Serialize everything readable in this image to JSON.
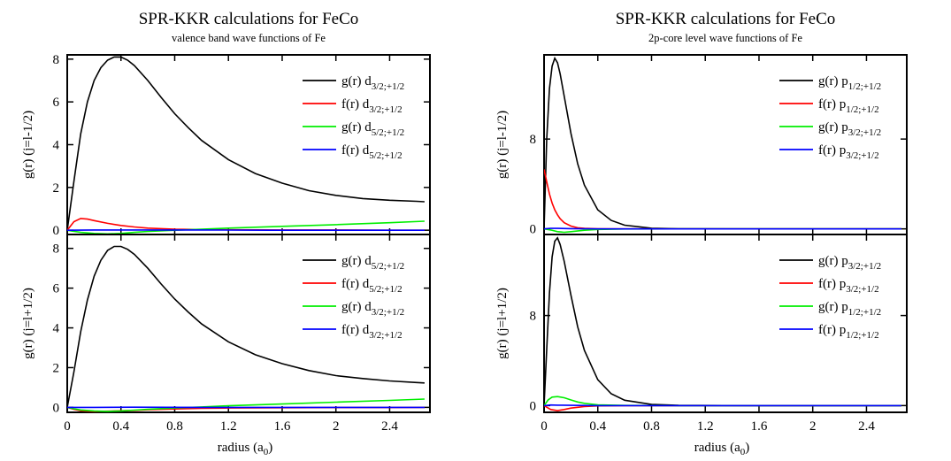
{
  "x_axis_label": "radius (a",
  "x_axis_label_sub": "0",
  "chart_data": [
    {
      "type": "line",
      "title": "SPR-KKR calculations for FeCo",
      "subtitle": "valence band wave functions of Fe",
      "xlim": [
        0,
        2.7
      ],
      "xticks": [
        0,
        0.4,
        0.8,
        1.2,
        1.6,
        2,
        2.4
      ],
      "xtick_labels": [
        "0",
        "0.4",
        "0.8",
        "1.2",
        "1.6",
        "2",
        "2.4"
      ],
      "panels": [
        {
          "ylabel": "g(r)    (j=l-1/2)",
          "ylim": [
            -0.2,
            8.2
          ],
          "yticks": [
            0,
            2,
            4,
            6,
            8
          ],
          "ytick_labels": [
            "0",
            "2",
            "4",
            "6",
            "8"
          ],
          "legend": "top-right",
          "series": [
            {
              "name": "g(r) d",
              "sub": "3/2;+1/2",
              "color": "#000000",
              "x": [
                0,
                0.05,
                0.1,
                0.15,
                0.2,
                0.25,
                0.3,
                0.35,
                0.4,
                0.45,
                0.5,
                0.6,
                0.7,
                0.8,
                0.9,
                1.0,
                1.2,
                1.4,
                1.6,
                1.8,
                2.0,
                2.2,
                2.4,
                2.6,
                2.66
              ],
              "y": [
                0,
                2.3,
                4.5,
                6.0,
                7.0,
                7.6,
                7.95,
                8.1,
                8.1,
                7.95,
                7.7,
                7.0,
                6.2,
                5.45,
                4.8,
                4.2,
                3.3,
                2.65,
                2.2,
                1.85,
                1.63,
                1.48,
                1.4,
                1.35,
                1.33
              ]
            },
            {
              "name": "f(r) d",
              "sub": "3/2;+1/2",
              "color": "#ff0000",
              "x": [
                0,
                0.05,
                0.1,
                0.15,
                0.2,
                0.3,
                0.4,
                0.5,
                0.6,
                0.8,
                1.0,
                1.2,
                1.6,
                2.0,
                2.4,
                2.66
              ],
              "y": [
                0,
                0.4,
                0.55,
                0.52,
                0.45,
                0.32,
                0.22,
                0.15,
                0.1,
                0.05,
                0.03,
                0.02,
                0.01,
                0.01,
                0.0,
                0.0
              ]
            },
            {
              "name": "g(r) d",
              "sub": "5/2;+1/2",
              "color": "#00ee00",
              "x": [
                0,
                0.05,
                0.1,
                0.2,
                0.3,
                0.4,
                0.5,
                0.6,
                0.8,
                1.0,
                1.2,
                1.6,
                2.0,
                2.4,
                2.66
              ],
              "y": [
                0,
                -0.05,
                -0.1,
                -0.15,
                -0.17,
                -0.15,
                -0.1,
                -0.06,
                0.0,
                0.05,
                0.1,
                0.18,
                0.26,
                0.35,
                0.42
              ]
            },
            {
              "name": "f(r) d",
              "sub": "5/2;+1/2",
              "color": "#0000ff",
              "x": [
                0,
                0.2,
                0.5,
                1.0,
                1.5,
                2.0,
                2.66
              ],
              "y": [
                0,
                0.01,
                0.01,
                0.01,
                0.0,
                0.0,
                0.0
              ]
            }
          ]
        },
        {
          "ylabel": "g(r)    (j=l+1/2)",
          "ylim": [
            -0.25,
            8.7
          ],
          "yticks": [
            0,
            2,
            4,
            6,
            8
          ],
          "ytick_labels": [
            "0",
            "2",
            "4",
            "6",
            "8"
          ],
          "legend": "top-right",
          "series": [
            {
              "name": "g(r) d",
              "sub": "5/2;+1/2",
              "color": "#000000",
              "x": [
                0,
                0.05,
                0.1,
                0.15,
                0.2,
                0.25,
                0.3,
                0.35,
                0.4,
                0.45,
                0.5,
                0.6,
                0.7,
                0.8,
                0.9,
                1.0,
                1.2,
                1.4,
                1.6,
                1.8,
                2.0,
                2.2,
                2.4,
                2.6,
                2.66
              ],
              "y": [
                0,
                1.8,
                3.8,
                5.4,
                6.6,
                7.4,
                7.9,
                8.1,
                8.1,
                7.95,
                7.7,
                7.0,
                6.2,
                5.45,
                4.8,
                4.2,
                3.3,
                2.65,
                2.2,
                1.85,
                1.6,
                1.45,
                1.33,
                1.25,
                1.23
              ]
            },
            {
              "name": "f(r) d",
              "sub": "5/2;+1/2",
              "color": "#ff0000",
              "x": [
                0,
                0.05,
                0.1,
                0.2,
                0.3,
                0.4,
                0.5,
                0.6,
                0.8,
                1.0,
                1.2,
                1.6,
                2.0,
                2.4,
                2.66
              ],
              "y": [
                0,
                -0.1,
                -0.17,
                -0.2,
                -0.19,
                -0.17,
                -0.15,
                -0.12,
                -0.08,
                -0.05,
                -0.03,
                -0.02,
                -0.01,
                -0.01,
                0.0
              ]
            },
            {
              "name": "g(r) d",
              "sub": "3/2;+1/2",
              "color": "#00ee00",
              "x": [
                0,
                0.05,
                0.1,
                0.2,
                0.3,
                0.4,
                0.5,
                0.6,
                0.8,
                1.0,
                1.2,
                1.6,
                2.0,
                2.4,
                2.66
              ],
              "y": [
                0,
                -0.07,
                -0.13,
                -0.18,
                -0.2,
                -0.18,
                -0.14,
                -0.1,
                -0.03,
                0.02,
                0.08,
                0.17,
                0.26,
                0.35,
                0.42
              ]
            },
            {
              "name": "f(r) d",
              "sub": "3/2;+1/2",
              "color": "#0000ff",
              "x": [
                0,
                0.2,
                0.5,
                1.0,
                1.5,
                2.0,
                2.66
              ],
              "y": [
                0,
                0.0,
                0.01,
                0.0,
                0.0,
                0.0,
                0.0
              ]
            }
          ]
        }
      ]
    },
    {
      "type": "line",
      "title": "SPR-KKR calculations for FeCo",
      "subtitle": "2p-core level wave functions of Fe",
      "xlim": [
        0,
        2.7
      ],
      "xticks": [
        0,
        0.4,
        0.8,
        1.2,
        1.6,
        2,
        2.4
      ],
      "xtick_labels": [
        "0",
        "0.4",
        "0.8",
        "1.2",
        "1.6",
        "2",
        "2.4"
      ],
      "panels": [
        {
          "ylabel": "g(r)    (j=l-1/2)",
          "ylim": [
            -0.5,
            15.5
          ],
          "yticks": [
            0,
            8
          ],
          "ytick_labels": [
            "0",
            "8"
          ],
          "legend": "top-right",
          "series": [
            {
              "name": "g(r) p",
              "sub": "1/2;+1/2",
              "color": "#000000",
              "x": [
                0,
                0.02,
                0.04,
                0.06,
                0.08,
                0.1,
                0.12,
                0.15,
                0.2,
                0.25,
                0.3,
                0.4,
                0.5,
                0.6,
                0.8,
                1.0,
                1.5,
                2.0,
                2.66
              ],
              "y": [
                0,
                8.0,
                12.5,
                14.5,
                15.2,
                14.8,
                13.8,
                11.8,
                8.5,
                5.8,
                3.9,
                1.7,
                0.75,
                0.33,
                0.06,
                0.01,
                0.0,
                0.0,
                0.0
              ]
            },
            {
              "name": "f(r) p",
              "sub": "1/2;+1/2",
              "color": "#ff0000",
              "x": [
                0,
                0.02,
                0.04,
                0.06,
                0.08,
                0.1,
                0.12,
                0.15,
                0.2,
                0.25,
                0.3,
                0.4,
                0.6,
                1.0,
                2.66
              ],
              "y": [
                5.3,
                4.2,
                3.1,
                2.3,
                1.7,
                1.25,
                0.9,
                0.55,
                0.25,
                0.1,
                0.04,
                0.01,
                0.0,
                0.0,
                0.0
              ]
            },
            {
              "name": "g(r) p",
              "sub": "3/2;+1/2",
              "color": "#00ee00",
              "x": [
                0,
                0.05,
                0.1,
                0.15,
                0.2,
                0.3,
                0.4,
                0.6,
                1.0,
                2.66
              ],
              "y": [
                0,
                -0.1,
                -0.25,
                -0.3,
                -0.25,
                -0.12,
                -0.05,
                -0.01,
                0.0,
                0.0
              ]
            },
            {
              "name": "f(r) p",
              "sub": "3/2;+1/2",
              "color": "#0000ff",
              "x": [
                0,
                0.05,
                0.1,
                0.2,
                0.4,
                1.0,
                2.66
              ],
              "y": [
                0,
                0.05,
                0.04,
                0.02,
                0.0,
                0.0,
                0.0
              ]
            }
          ]
        },
        {
          "ylabel": "g(r)    (j=l+1/2)",
          "ylim": [
            -0.6,
            15.2
          ],
          "yticks": [
            0,
            8
          ],
          "ytick_labels": [
            "0",
            "8"
          ],
          "legend": "top-right",
          "series": [
            {
              "name": "g(r) p",
              "sub": "3/2;+1/2",
              "color": "#000000",
              "x": [
                0,
                0.02,
                0.04,
                0.06,
                0.08,
                0.1,
                0.12,
                0.15,
                0.2,
                0.25,
                0.3,
                0.4,
                0.5,
                0.6,
                0.8,
                1.0,
                1.5,
                2.0,
                2.66
              ],
              "y": [
                0,
                5.0,
                10.0,
                13.2,
                14.6,
                14.9,
                14.3,
                12.8,
                9.8,
                7.0,
                4.9,
                2.3,
                1.05,
                0.48,
                0.1,
                0.02,
                0.0,
                0.0,
                0.0
              ]
            },
            {
              "name": "f(r) p",
              "sub": "3/2;+1/2",
              "color": "#ff0000",
              "x": [
                0,
                0.05,
                0.1,
                0.15,
                0.2,
                0.3,
                0.4,
                0.6,
                1.0,
                2.66
              ],
              "y": [
                0,
                -0.35,
                -0.45,
                -0.35,
                -0.22,
                -0.08,
                -0.03,
                0.0,
                0.0,
                0.0
              ]
            },
            {
              "name": "g(r) p",
              "sub": "1/2;+1/2",
              "color": "#00ee00",
              "x": [
                0,
                0.03,
                0.06,
                0.1,
                0.15,
                0.2,
                0.25,
                0.3,
                0.4,
                0.6,
                1.0,
                2.66
              ],
              "y": [
                0,
                0.5,
                0.75,
                0.8,
                0.7,
                0.5,
                0.32,
                0.2,
                0.07,
                0.01,
                0.0,
                0.0
              ]
            },
            {
              "name": "f(r) p",
              "sub": "1/2;+1/2",
              "color": "#0000ff",
              "x": [
                0,
                0.05,
                0.1,
                0.2,
                0.4,
                1.0,
                2.66
              ],
              "y": [
                0,
                0.05,
                0.04,
                0.02,
                0.0,
                0.0,
                0.0
              ]
            }
          ]
        }
      ]
    }
  ]
}
